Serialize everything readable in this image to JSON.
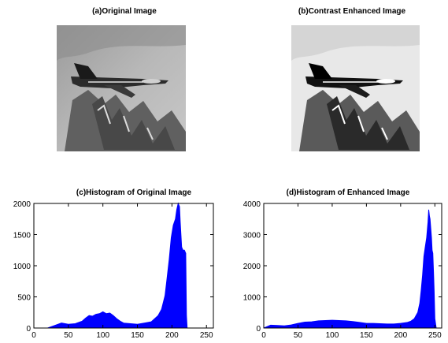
{
  "panels": {
    "a_title": "(a)Original Image",
    "b_title": "(b)Contrast Enhanced Image",
    "c_title": "(c)Histogram of Original Image",
    "d_title": "(d)Histogram of Enhanced Image"
  },
  "images": {
    "a_icon": "grayscale-aircraft-photo",
    "b_icon": "contrast-enhanced-aircraft-photo"
  },
  "chart_data": [
    {
      "type": "area",
      "title": "(c)Histogram of Original Image",
      "xlabel": "",
      "ylabel": "",
      "xlim": [
        0,
        260
      ],
      "ylim": [
        0,
        2000
      ],
      "xticks": [
        0,
        50,
        100,
        150,
        200,
        250
      ],
      "yticks": [
        0,
        500,
        1000,
        1500,
        2000
      ],
      "color": "#0000ff",
      "grid": false,
      "x": [
        20,
        30,
        40,
        50,
        60,
        70,
        75,
        80,
        85,
        90,
        95,
        100,
        105,
        110,
        115,
        120,
        125,
        130,
        140,
        150,
        160,
        170,
        180,
        185,
        190,
        193,
        196,
        199,
        202,
        205,
        207,
        209,
        211,
        212,
        213,
        214,
        216,
        218,
        220,
        221,
        222
      ],
      "y": [
        0,
        40,
        80,
        60,
        70,
        110,
        160,
        200,
        190,
        220,
        230,
        260,
        230,
        240,
        200,
        150,
        110,
        80,
        70,
        60,
        80,
        100,
        200,
        300,
        520,
        800,
        1100,
        1450,
        1650,
        1750,
        1900,
        2000,
        1950,
        1700,
        1500,
        1300,
        1250,
        1250,
        1200,
        200,
        0
      ]
    },
    {
      "type": "area",
      "title": "(d)Histogram of Enhanced Image",
      "xlabel": "",
      "ylabel": "",
      "xlim": [
        0,
        260
      ],
      "ylim": [
        0,
        4000
      ],
      "xticks": [
        0,
        50,
        100,
        150,
        200,
        250
      ],
      "yticks": [
        0,
        1000,
        2000,
        3000,
        4000
      ],
      "color": "#0000ff",
      "grid": false,
      "x": [
        0,
        10,
        20,
        30,
        40,
        50,
        60,
        70,
        80,
        90,
        100,
        110,
        120,
        130,
        140,
        150,
        160,
        170,
        180,
        190,
        200,
        210,
        215,
        220,
        225,
        228,
        230,
        232,
        234,
        236,
        238,
        240,
        241,
        242,
        243,
        244,
        245,
        246,
        247,
        248,
        249,
        250,
        252
      ],
      "y": [
        0,
        90,
        80,
        70,
        100,
        150,
        190,
        200,
        230,
        240,
        250,
        240,
        230,
        210,
        180,
        150,
        150,
        140,
        130,
        130,
        150,
        180,
        220,
        300,
        500,
        800,
        1200,
        1700,
        2300,
        2600,
        2900,
        3400,
        3800,
        3600,
        3500,
        3200,
        2900,
        2500,
        2400,
        1800,
        1200,
        300,
        0
      ]
    }
  ]
}
